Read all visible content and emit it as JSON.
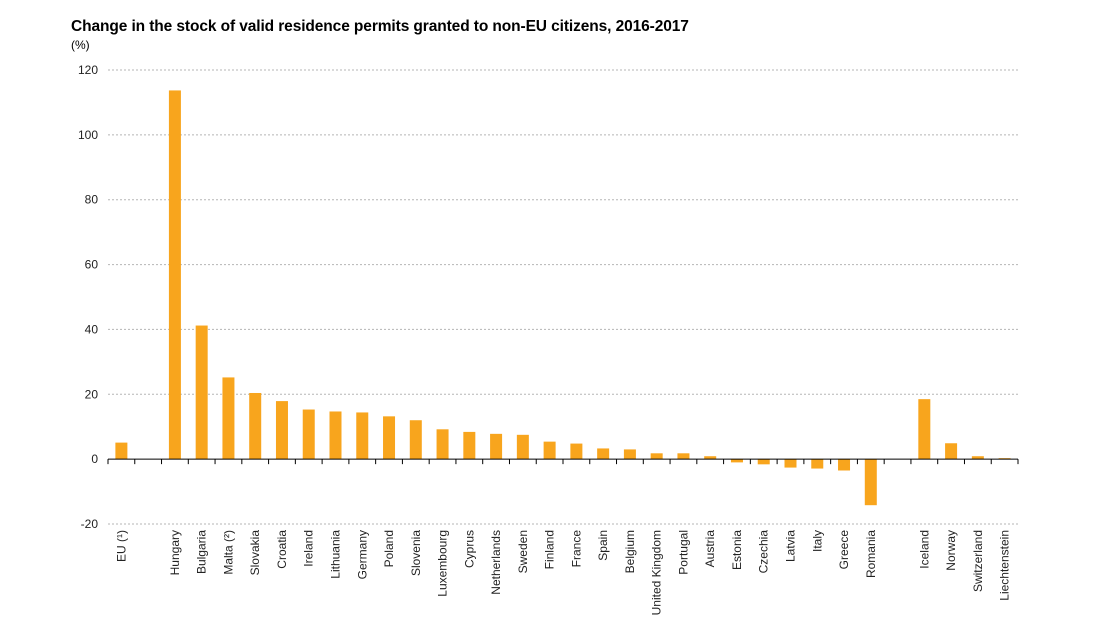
{
  "chart_data": {
    "type": "bar",
    "title": "Change in the stock of valid residence permits granted to non-EU citizens, 2016-2017",
    "unit_label": "(%)",
    "xlabel": "",
    "ylabel": "",
    "ylim": [
      -20,
      120
    ],
    "yticks": [
      -20,
      0,
      20,
      40,
      60,
      80,
      100,
      120
    ],
    "grid": true,
    "bar_color": "#F8A51D",
    "categories": [
      "EU (¹)",
      "",
      "Hungary",
      "Bulgaria",
      "Malta (²)",
      "Slovakia",
      "Croatia",
      "Ireland",
      "Lithuania",
      "Germany",
      "Poland",
      "Slovenia",
      "Luxembourg",
      "Cyprus",
      "Netherlands",
      "Sweden",
      "Finland",
      "France",
      "Spain",
      "Belgium",
      "United Kingdom",
      "Portugal",
      "Austria",
      "Estonia",
      "Czechia",
      "Latvia",
      "Italy",
      "Greece",
      "Romania",
      "",
      "Iceland",
      "Norway",
      "Switzerland",
      "Liechtenstein"
    ],
    "values": [
      5.1,
      null,
      113.7,
      41.2,
      25.2,
      20.4,
      17.9,
      15.3,
      14.7,
      14.4,
      13.2,
      12.0,
      9.2,
      8.4,
      7.8,
      7.5,
      5.4,
      4.8,
      3.3,
      3.0,
      1.8,
      1.8,
      0.9,
      -1.0,
      -1.6,
      -2.6,
      -2.9,
      -3.5,
      -14.2,
      null,
      18.5,
      4.9,
      0.9,
      0.3
    ]
  }
}
